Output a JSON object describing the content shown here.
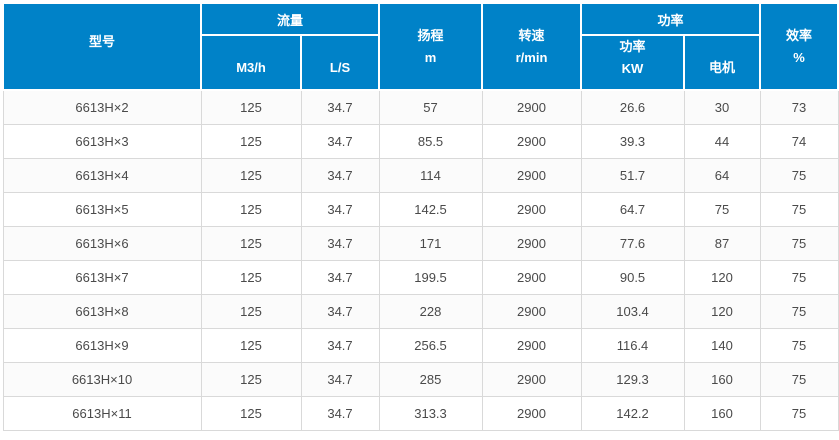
{
  "table": {
    "header": {
      "model": "型号",
      "flow_group": "流量",
      "flow_m3h": "M3/h",
      "flow_ls": "L/S",
      "head_line1": "扬程",
      "head_line2": "m",
      "speed_line1": "转速",
      "speed_line2": "r/min",
      "power_group": "功率",
      "power_kw_line1": "功率",
      "power_kw_line2": "KW",
      "motor": "电机",
      "efficiency_line1": "效率",
      "efficiency_line2": "%"
    },
    "column_keys": [
      "model",
      "flow-m3h",
      "flow-ls",
      "head-m",
      "speed-rpm",
      "power-kw",
      "motor",
      "efficiency"
    ],
    "rows": [
      [
        "6613H×2",
        "125",
        "34.7",
        "57",
        "2900",
        "26.6",
        "30",
        "73"
      ],
      [
        "6613H×3",
        "125",
        "34.7",
        "85.5",
        "2900",
        "39.3",
        "44",
        "74"
      ],
      [
        "6613H×4",
        "125",
        "34.7",
        "114",
        "2900",
        "51.7",
        "64",
        "75"
      ],
      [
        "6613H×5",
        "125",
        "34.7",
        "142.5",
        "2900",
        "64.7",
        "75",
        "75"
      ],
      [
        "6613H×6",
        "125",
        "34.7",
        "171",
        "2900",
        "77.6",
        "87",
        "75"
      ],
      [
        "6613H×7",
        "125",
        "34.7",
        "199.5",
        "2900",
        "90.5",
        "120",
        "75"
      ],
      [
        "6613H×8",
        "125",
        "34.7",
        "228",
        "2900",
        "103.4",
        "120",
        "75"
      ],
      [
        "6613H×9",
        "125",
        "34.7",
        "256.5",
        "2900",
        "116.4",
        "140",
        "75"
      ],
      [
        "6613H×10",
        "125",
        "34.7",
        "285",
        "2900",
        "129.3",
        "160",
        "75"
      ],
      [
        "6613H×11",
        "125",
        "34.7",
        "313.3",
        "2900",
        "142.2",
        "160",
        "75"
      ]
    ]
  },
  "colors": {
    "header_bg": "#0082c8",
    "header_text": "#ffffff",
    "cell_border": "#d9d9d9",
    "alt_row_bg": "#fbfbfb",
    "body_text": "#4a4a4a"
  }
}
